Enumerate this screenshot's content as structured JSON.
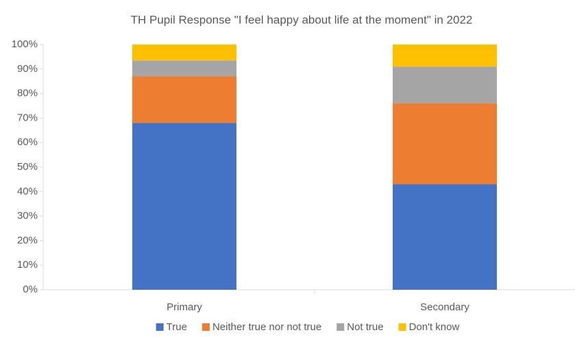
{
  "chart_data": {
    "type": "stacked-bar",
    "title": "TH Pupil Response \"I feel happy about life at the moment\" in 2022",
    "categories": [
      "Primary",
      "Secondary"
    ],
    "series": [
      {
        "name": "True",
        "color": "#4472c4",
        "values": [
          68,
          43
        ]
      },
      {
        "name": "Neither true nor not true",
        "color": "#ed7d31",
        "values": [
          19,
          33
        ]
      },
      {
        "name": "Not true",
        "color": "#a5a5a5",
        "values": [
          6.5,
          15
        ]
      },
      {
        "name": "Don't know",
        "color": "#ffc000",
        "values": [
          6.5,
          9
        ]
      }
    ],
    "ylim": [
      0,
      100
    ],
    "yticks": [
      {
        "value": 0,
        "label": "0%"
      },
      {
        "value": 10,
        "label": "10%"
      },
      {
        "value": 20,
        "label": "20%"
      },
      {
        "value": 30,
        "label": "30%"
      },
      {
        "value": 40,
        "label": "40%"
      },
      {
        "value": 50,
        "label": "50%"
      },
      {
        "value": 60,
        "label": "60%"
      },
      {
        "value": 70,
        "label": "70%"
      },
      {
        "value": 80,
        "label": "80%"
      },
      {
        "value": 90,
        "label": "90%"
      },
      {
        "value": 100,
        "label": "100%"
      }
    ],
    "grid": false,
    "legend": "bottom"
  }
}
